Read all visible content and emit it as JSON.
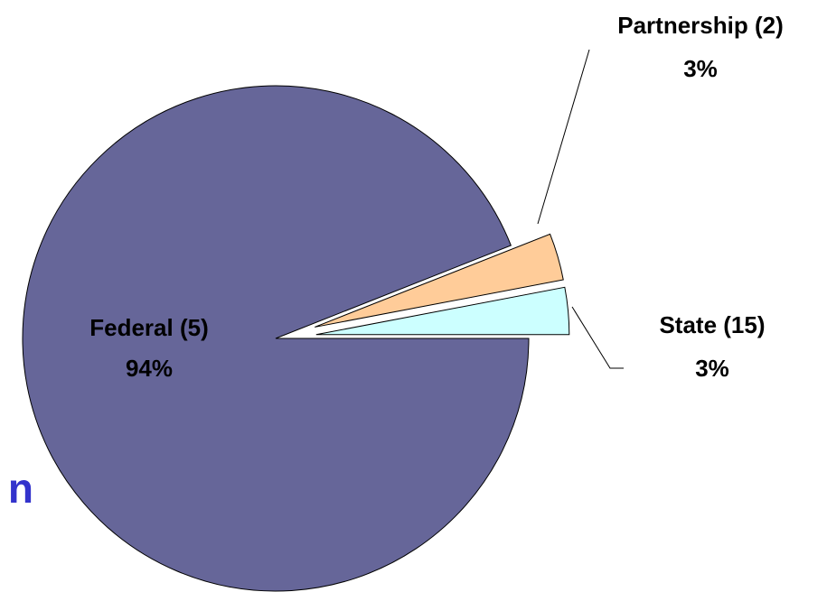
{
  "chart_data": {
    "type": "pie",
    "categories": [
      "Federal (5)",
      "Partnership (2)",
      "State (15)"
    ],
    "values": [
      94,
      3,
      3
    ],
    "value_labels": [
      "94%",
      "3%",
      "3%"
    ],
    "colors": [
      "#666699",
      "#ffcc99",
      "#ccffff"
    ],
    "exploded": [
      false,
      true,
      true
    ],
    "annotation": "n"
  }
}
